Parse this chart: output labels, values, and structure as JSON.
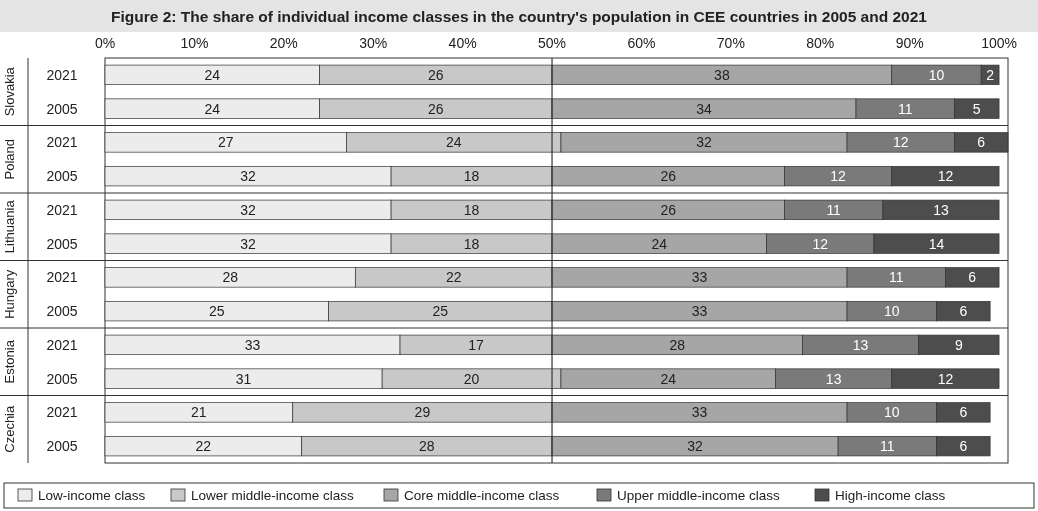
{
  "chart_data": {
    "type": "bar",
    "orientation": "horizontal",
    "stacked": true,
    "title": "Figure 2: The share of individual income classes in the country's population in CEE countries in 2005 and 2021",
    "categories": [
      "2021",
      "2005",
      "2021",
      "2005",
      "2021",
      "2005",
      "2021",
      "2005",
      "2021",
      "2005",
      "2021",
      "2005"
    ],
    "annotations": [
      "Slovakia",
      "Poland",
      "Lithuania",
      "Hungary",
      "Estonia",
      "Czechia"
    ],
    "series": [
      {
        "name": "Low-income class",
        "color": "#ececec",
        "values": [
          24,
          24,
          27,
          32,
          32,
          32,
          28,
          25,
          33,
          31,
          21,
          22
        ],
        "value_labels": [
          "24",
          "24",
          "27",
          "32",
          "32",
          "32",
          "28",
          "25",
          "33",
          "31",
          "21",
          "22"
        ]
      },
      {
        "name": "Lower middle-income class",
        "color": "#c8c8c8",
        "values": [
          26,
          26,
          24,
          18,
          18,
          18,
          22,
          25,
          17,
          20,
          29,
          28
        ],
        "value_labels": [
          "26",
          "26",
          "24",
          "18",
          "18",
          "18",
          "22",
          "25",
          "17",
          "20",
          "29",
          "28"
        ]
      },
      {
        "name": "Core middle-income class",
        "color": "#a6a6a6",
        "values": [
          38,
          34,
          32,
          26,
          26,
          24,
          33,
          33,
          28,
          24,
          33,
          32
        ],
        "value_labels": [
          "38",
          "34",
          "32",
          "26",
          "26",
          "24",
          "33",
          "33",
          "28",
          "24",
          "33",
          "32"
        ]
      },
      {
        "name": "Upper middle-income class",
        "color": "#7a7a7a",
        "values": [
          10,
          11,
          12,
          12,
          11,
          12,
          11,
          10,
          13,
          13,
          10,
          11
        ],
        "value_labels": [
          "10",
          "11",
          "12",
          "12",
          "11",
          "12",
          "11",
          "10",
          "13",
          "13",
          "10",
          "11"
        ]
      },
      {
        "name": "High-income class",
        "color": "#4d4d4d",
        "values": [
          2,
          5,
          6,
          12,
          13,
          14,
          6,
          6,
          9,
          12,
          6,
          6
        ],
        "value_labels": [
          "2",
          "5",
          "6",
          "12",
          "13",
          "14",
          "6",
          "6",
          "9",
          "12",
          "6",
          "6"
        ]
      }
    ],
    "xlim": [
      0,
      101
    ],
    "xticks": [
      {
        "value": 0,
        "label": "0%"
      },
      {
        "value": 10,
        "label": "10%"
      },
      {
        "value": 20,
        "label": "20%"
      },
      {
        "value": 30,
        "label": "30%"
      },
      {
        "value": 40,
        "label": "40%"
      },
      {
        "value": 50,
        "label": "50%"
      },
      {
        "value": 60,
        "label": "60%"
      },
      {
        "value": 70,
        "label": "70%"
      },
      {
        "value": 80,
        "label": "80%"
      },
      {
        "value": 90,
        "label": "90%"
      },
      {
        "value": 100,
        "label": "100%"
      }
    ],
    "ref_lines": [
      {
        "axis": "x",
        "value": 50,
        "color": "#333333"
      }
    ],
    "legend": "bottom"
  }
}
